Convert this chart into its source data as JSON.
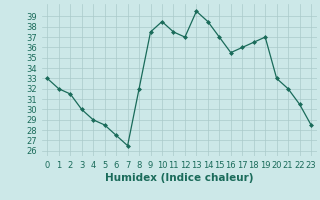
{
  "x": [
    0,
    1,
    2,
    3,
    4,
    5,
    6,
    7,
    8,
    9,
    10,
    11,
    12,
    13,
    14,
    15,
    16,
    17,
    18,
    19,
    20,
    21,
    22,
    23
  ],
  "y": [
    33,
    32,
    31.5,
    30,
    29,
    28.5,
    27.5,
    26.5,
    32,
    37.5,
    38.5,
    37.5,
    37,
    39.5,
    38.5,
    37,
    35.5,
    36,
    36.5,
    37,
    33,
    32,
    30.5,
    28.5
  ],
  "line_color": "#1a6b5a",
  "marker": "D",
  "marker_size": 2,
  "bg_color": "#cce8e8",
  "grid_color": "#aacaca",
  "xlabel": "Humidex (Indice chaleur)",
  "xlabel_fontsize": 7.5,
  "ylabel_ticks": [
    26,
    27,
    28,
    29,
    30,
    31,
    32,
    33,
    34,
    35,
    36,
    37,
    38,
    39
  ],
  "ylim": [
    25.5,
    40.2
  ],
  "xlim": [
    -0.5,
    23.5
  ],
  "xticks": [
    0,
    1,
    2,
    3,
    4,
    5,
    6,
    7,
    8,
    9,
    10,
    11,
    12,
    13,
    14,
    15,
    16,
    17,
    18,
    19,
    20,
    21,
    22,
    23
  ],
  "tick_fontsize": 6.0
}
